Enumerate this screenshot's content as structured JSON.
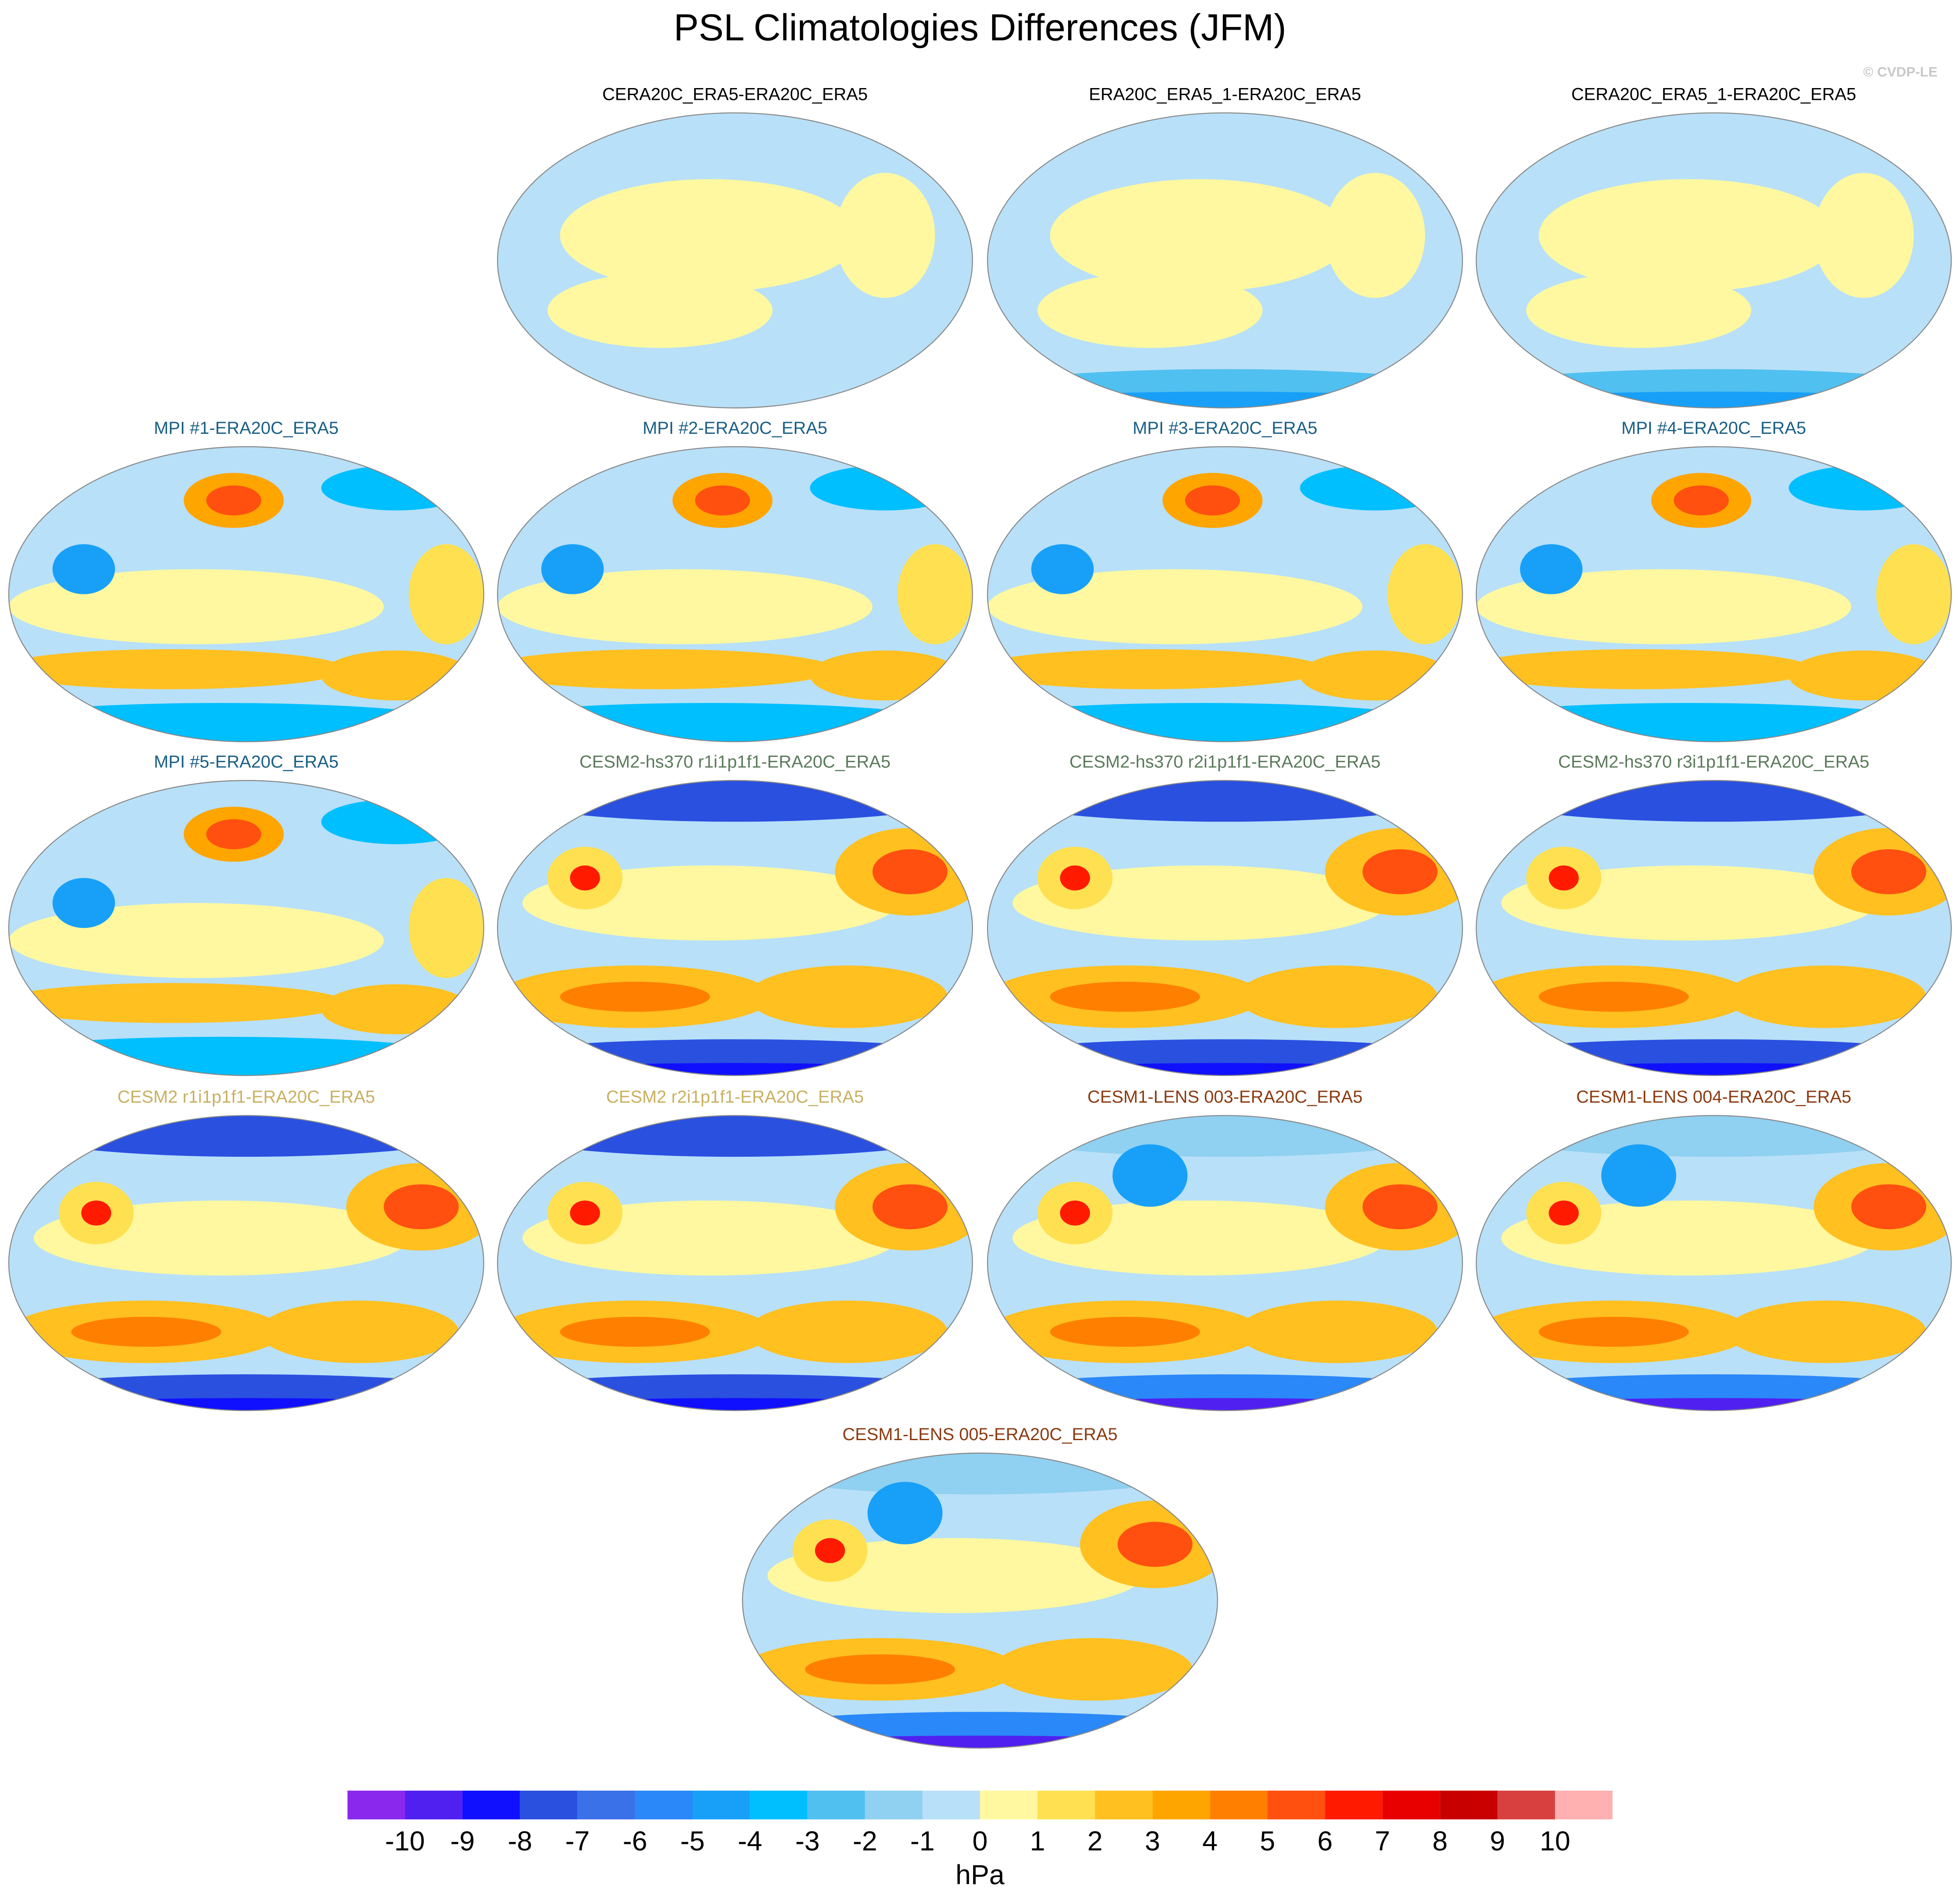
{
  "title": "PSL Climatologies Differences (JFM)",
  "credit": "© CVDP-LE",
  "panels": [
    {
      "title": "CERA20C_ERA5-ERA20C_ERA5",
      "color": "#000000"
    },
    {
      "title": "ERA20C_ERA5_1-ERA20C_ERA5",
      "color": "#000000"
    },
    {
      "title": "CERA20C_ERA5_1-ERA20C_ERA5",
      "color": "#000000"
    },
    {
      "title": "MPI #1-ERA20C_ERA5",
      "color": "#1a5f85"
    },
    {
      "title": "MPI #2-ERA20C_ERA5",
      "color": "#1a5f85"
    },
    {
      "title": "MPI #3-ERA20C_ERA5",
      "color": "#1a5f85"
    },
    {
      "title": "MPI #4-ERA20C_ERA5",
      "color": "#1a5f85"
    },
    {
      "title": "MPI #5-ERA20C_ERA5",
      "color": "#1a5f85"
    },
    {
      "title": "CESM2-hs370 r1i1p1f1-ERA20C_ERA5",
      "color": "#5a7a5a"
    },
    {
      "title": "CESM2-hs370 r2i1p1f1-ERA20C_ERA5",
      "color": "#5a7a5a"
    },
    {
      "title": "CESM2-hs370 r3i1p1f1-ERA20C_ERA5",
      "color": "#5a7a5a"
    },
    {
      "title": "CESM2 r1i1p1f1-ERA20C_ERA5",
      "color": "#c8b060"
    },
    {
      "title": "CESM2 r2i1p1f1-ERA20C_ERA5",
      "color": "#c8b060"
    },
    {
      "title": "CESM1-LENS 003-ERA20C_ERA5",
      "color": "#8b3a10"
    },
    {
      "title": "CESM1-LENS 004-ERA20C_ERA5",
      "color": "#8b3a10"
    },
    {
      "title": "CESM1-LENS 005-ERA20C_ERA5",
      "color": "#8b3a10"
    }
  ],
  "colorbar": {
    "levels": [
      -10,
      -9,
      -8,
      -7,
      -6,
      -5,
      -4,
      -3,
      -2,
      -1,
      0,
      1,
      2,
      3,
      4,
      5,
      6,
      7,
      8,
      9,
      10
    ],
    "colors": [
      "#8a28ee",
      "#5020f0",
      "#1010ff",
      "#2a50e0",
      "#3a70e8",
      "#2a88f8",
      "#18a0f8",
      "#00bfff",
      "#50c0f0",
      "#90d0f0",
      "#b8e0f8",
      "#fff8a0",
      "#ffe050",
      "#ffc020",
      "#ffa500",
      "#ff8000",
      "#ff5010",
      "#ff1a00",
      "#e80000",
      "#c80000",
      "#d84040",
      "#ffb0b0"
    ],
    "units": "hPa"
  }
}
